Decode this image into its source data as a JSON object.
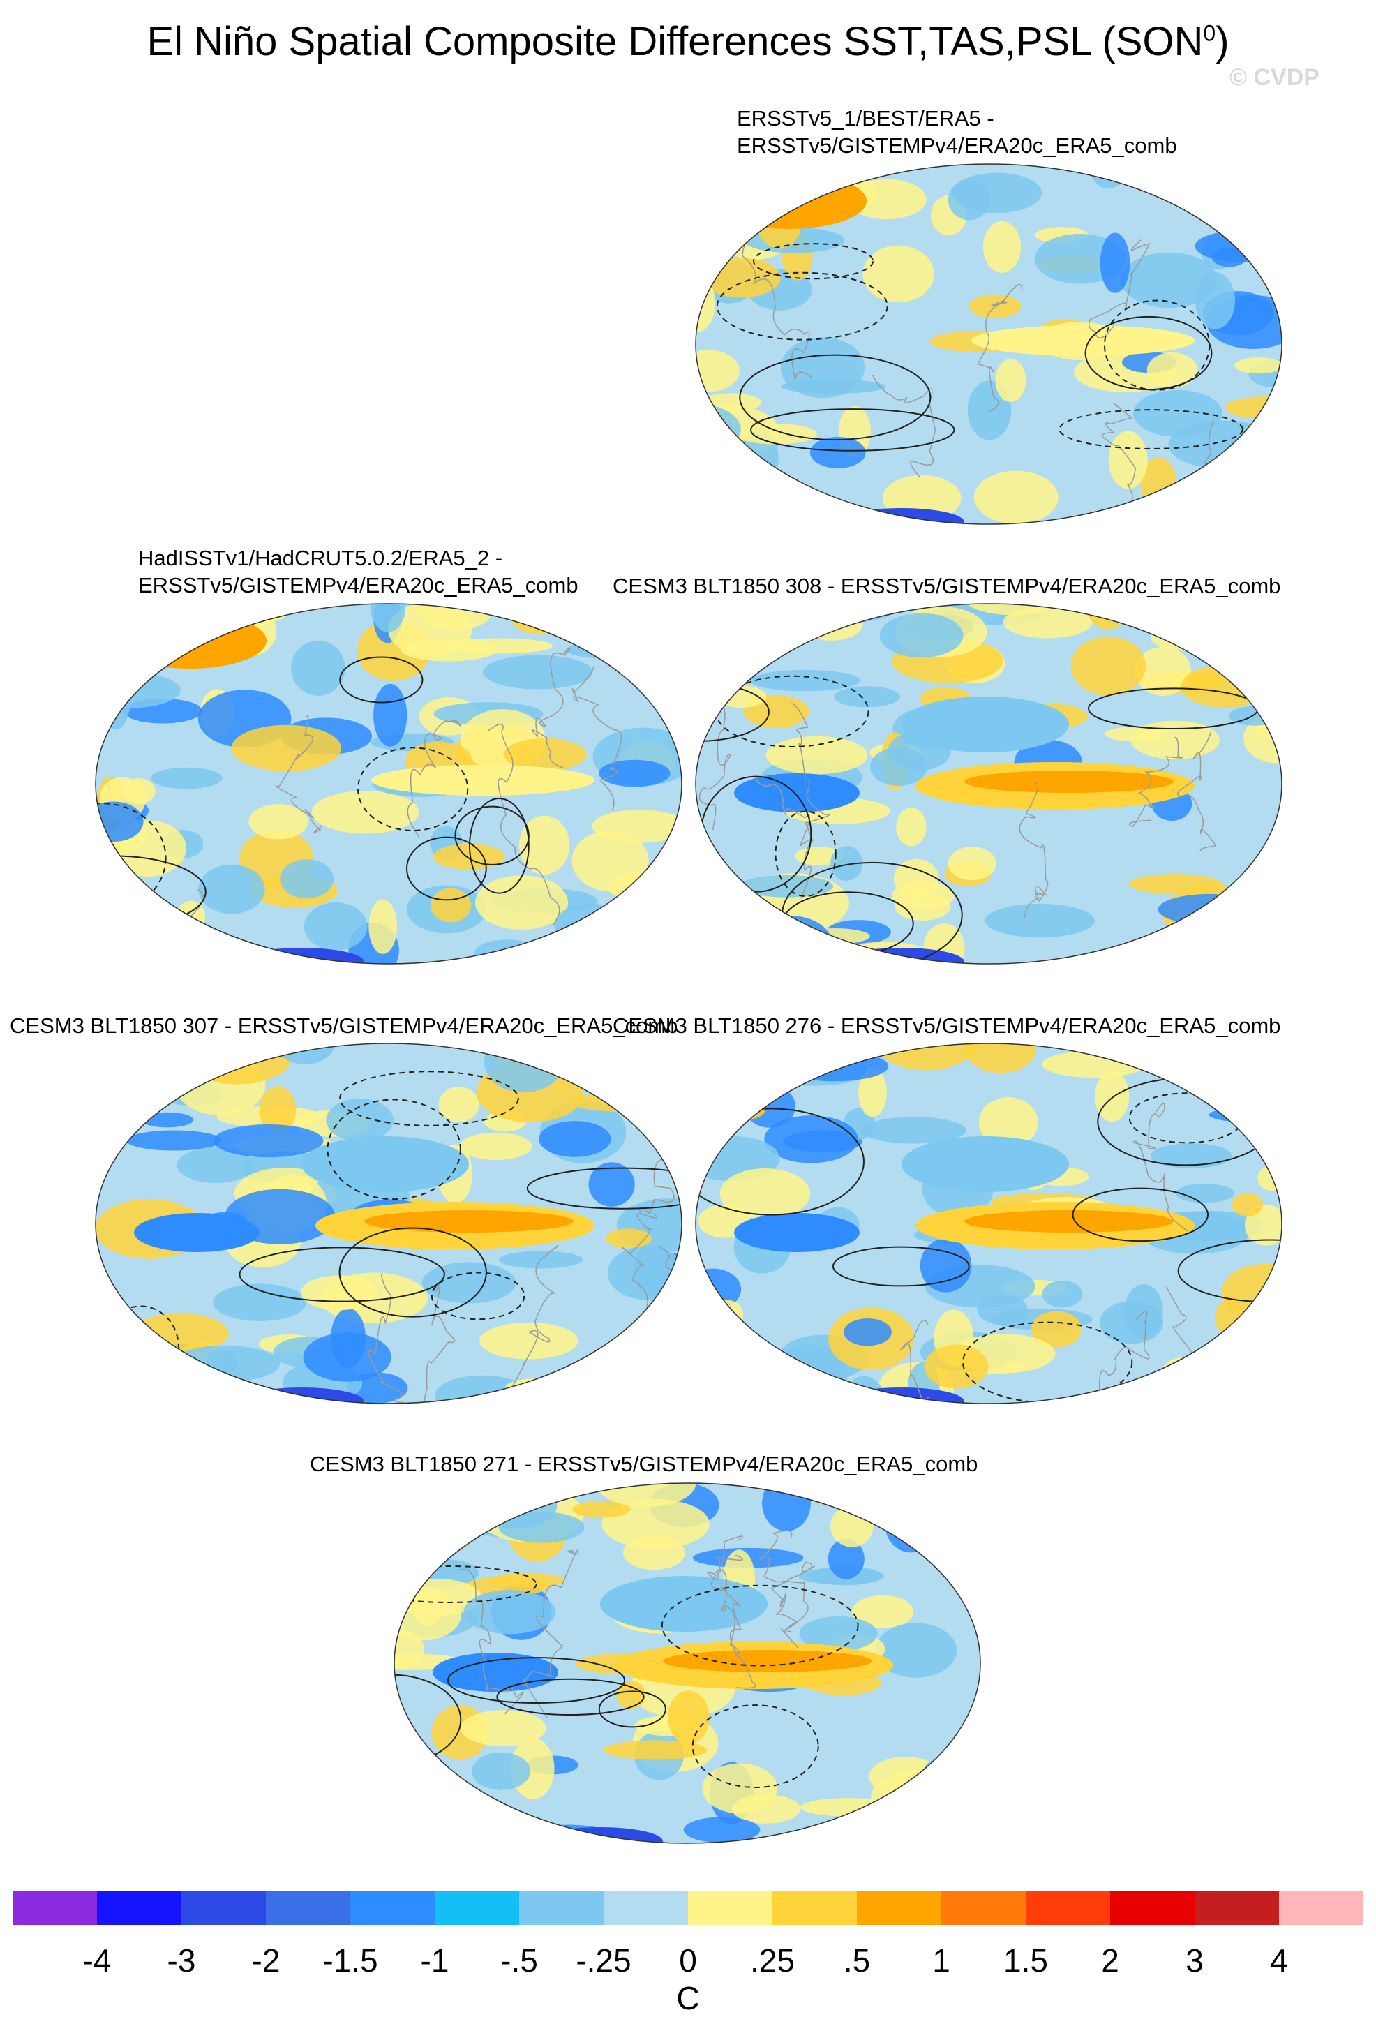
{
  "title": "El Niño Spatial Composite Differences SST,TAS,PSL (SON",
  "title_sup": "0",
  "title_close": ")",
  "watermark": "© CVDP",
  "panels": [
    {
      "label": "ERSSTv5_1/BEST/ERA5 -\nERSSTv5/GISTEMPv4/ERA20c_ERA5_comb",
      "style": "obs"
    },
    {
      "label": "HadISSTv1/HadCRUT5.0.2/ERA5_2 -\nERSSTv5/GISTEMPv4/ERA20c_ERA5_comb",
      "style": "obs"
    },
    {
      "label": "CESM3 BLT1850 308 - ERSSTv5/GISTEMPv4/ERA20c_ERA5_comb",
      "style": "model"
    },
    {
      "label": "CESM3 BLT1850 307 - ERSSTv5/GISTEMPv4/ERA20c_ERA5_comb",
      "style": "model"
    },
    {
      "label": "CESM3 BLT1850 276 - ERSSTv5/GISTEMPv4/ERA20c_ERA5_comb",
      "style": "model"
    },
    {
      "label": "CESM3 BLT1850 271 - ERSSTv5/GISTEMPv4/ERA20c_ERA5_comb",
      "style": "model"
    }
  ],
  "colorbar": {
    "colors": [
      "#8a2be2",
      "#1414ff",
      "#2c4be6",
      "#3a6fe8",
      "#2f8cff",
      "#14bff5",
      "#7cc8f0",
      "#b4dcf0",
      "#fff48a",
      "#ffd43a",
      "#ffa500",
      "#ff7a0a",
      "#ff3d0a",
      "#e80000",
      "#c41e1e",
      "#ffb6b9"
    ],
    "ticks": [
      "-4",
      "-3",
      "-2",
      "-1.5",
      "-1",
      "-.5",
      "-.25",
      "0",
      ".25",
      ".5",
      "1",
      "1.5",
      "2",
      "3",
      "4"
    ],
    "units": "C"
  },
  "colors": {
    "ocean_neutral": "#b4dcf0",
    "warm": "#fff48a",
    "warmer": "#ffd43a",
    "hot": "#ffa500",
    "cold": "#7cc8f0",
    "colder": "#2f8cff"
  }
}
